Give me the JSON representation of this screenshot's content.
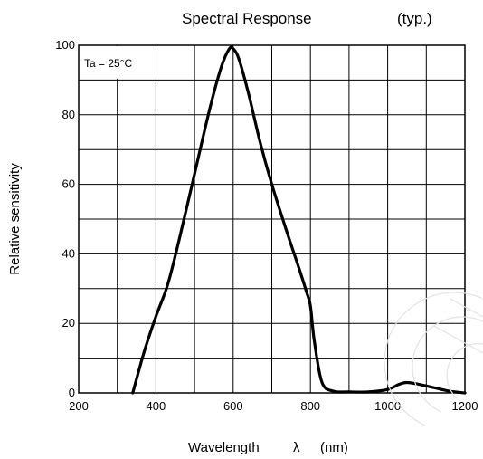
{
  "chart_data": {
    "type": "line",
    "title": "Spectral Response",
    "subtitle": "(typ.)",
    "xlabel": "Wavelength",
    "xlabel_symbol": "λ",
    "xlabel_unit": "(nm)",
    "ylabel": "Relative sensitivity",
    "xlim": [
      200,
      1200
    ],
    "ylim": [
      0,
      100
    ],
    "x_ticks": [
      "200",
      "400",
      "600",
      "800",
      "1000",
      "1200"
    ],
    "y_ticks": [
      "0",
      "20",
      "40",
      "60",
      "80",
      "100"
    ],
    "grid": true,
    "annotation": "Ta = 25°C",
    "series": [
      {
        "x": [
          340,
          370,
          400,
          430,
          460,
          500,
          540,
          570,
          590,
          600,
          615,
          640,
          670,
          700,
          740,
          770,
          790,
          800,
          810,
          830,
          860,
          900,
          950,
          1000,
          1030,
          1050,
          1080,
          1120,
          1160,
          1200
        ],
        "y": [
          0,
          12,
          22,
          31,
          44,
          63,
          82,
          94,
          99,
          99,
          96,
          86,
          72,
          60,
          46,
          36,
          29,
          25,
          15,
          3,
          0.5,
          0.3,
          0.3,
          1,
          2.5,
          3,
          2.5,
          1.5,
          0.5,
          0
        ]
      }
    ]
  }
}
